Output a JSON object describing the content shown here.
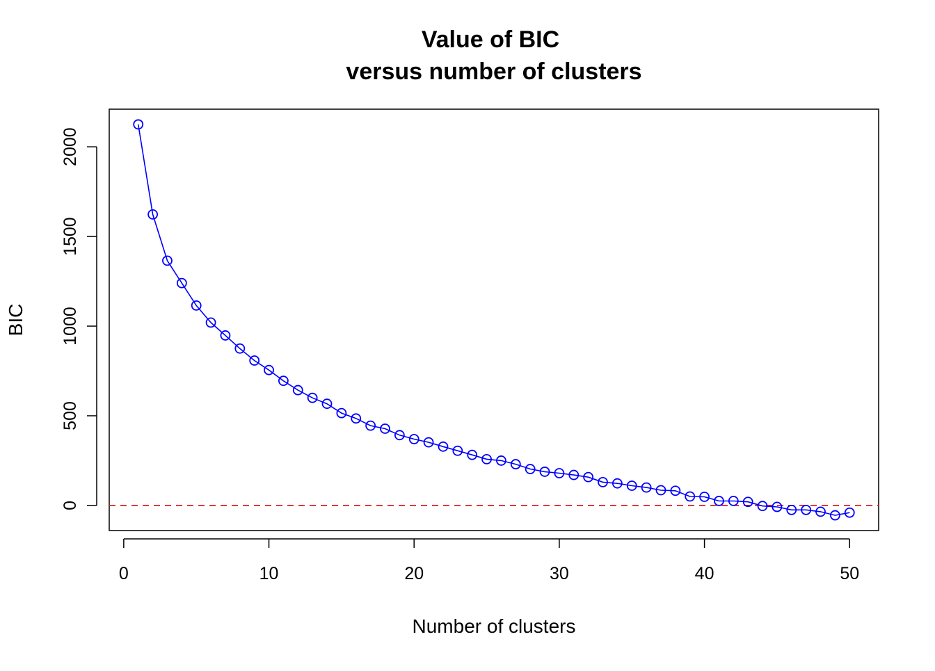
{
  "chart_data": {
    "type": "line",
    "title": "Value of BIC",
    "subtitle": "versus number of clusters",
    "xlabel": "Number of clusters",
    "ylabel": "BIC",
    "xlim": [
      -1,
      52
    ],
    "ylim": [
      -140,
      2210
    ],
    "x_ticks": [
      0,
      10,
      20,
      30,
      40,
      50
    ],
    "y_ticks": [
      0,
      500,
      1000,
      1500,
      2000
    ],
    "grid": false,
    "legend": "none",
    "reference_line": {
      "y": 0,
      "style": "dashed",
      "color": "#e31a1c"
    },
    "series": [
      {
        "color": "#0000ff",
        "marker": "open-circle",
        "x": [
          1,
          2,
          3,
          4,
          5,
          6,
          7,
          8,
          9,
          10,
          11,
          12,
          13,
          14,
          15,
          16,
          17,
          18,
          19,
          20,
          21,
          22,
          23,
          24,
          25,
          26,
          27,
          28,
          29,
          30,
          31,
          32,
          33,
          34,
          35,
          36,
          37,
          38,
          39,
          40,
          41,
          42,
          43,
          44,
          45,
          46,
          47,
          48,
          49,
          50
        ],
        "y": [
          2125,
          1623,
          1365,
          1240,
          1115,
          1020,
          948,
          875,
          808,
          755,
          695,
          643,
          600,
          567,
          515,
          485,
          445,
          428,
          392,
          370,
          352,
          328,
          305,
          282,
          258,
          250,
          230,
          203,
          188,
          180,
          170,
          158,
          130,
          123,
          110,
          100,
          85,
          82,
          50,
          48,
          25,
          25,
          20,
          -3,
          -8,
          -25,
          -25,
          -35,
          -55,
          -40
        ]
      }
    ]
  }
}
